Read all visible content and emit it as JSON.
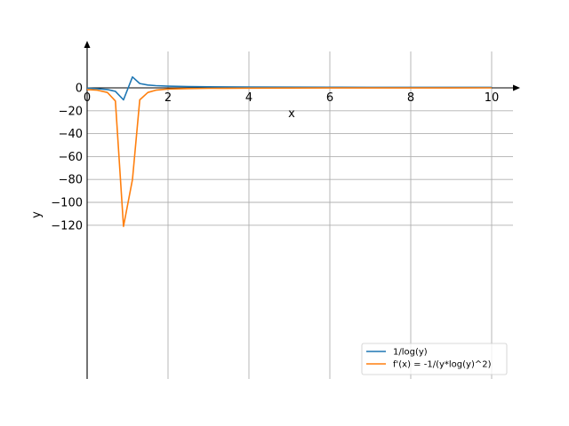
{
  "chart_data": {
    "type": "line",
    "title": "",
    "xlabel": "x",
    "ylabel": "y",
    "xlim": [
      0,
      10.5
    ],
    "ylim": [
      -128,
      18
    ],
    "grid": true,
    "legend_position": "lower-right",
    "x_ticks": [
      0,
      2,
      4,
      6,
      8,
      10
    ],
    "x_tick_labels": [
      "0",
      "2",
      "4",
      "6",
      "8",
      "10"
    ],
    "y_ticks": [
      0,
      -20,
      -40,
      -60,
      -80,
      -100,
      -120
    ],
    "y_tick_labels": [
      "0",
      "−20",
      "−40",
      "−60",
      "−80",
      "−100",
      "−120"
    ],
    "series": [
      {
        "name": "1/log(y)",
        "color": "#1f77b4",
        "x": [
          0,
          0.25,
          0.5,
          0.7,
          0.9,
          1.12,
          1.3,
          1.5,
          1.7,
          2.0,
          2.5,
          3.0,
          4.0,
          5.0,
          6.0,
          7.0,
          8.0,
          9.0,
          10.0
        ],
        "y": [
          -0.2,
          -0.8,
          -1.5,
          -3.0,
          -10.5,
          9.5,
          3.8,
          2.5,
          1.9,
          1.45,
          1.1,
          0.9,
          0.75,
          0.62,
          0.55,
          0.5,
          0.48,
          0.45,
          0.43
        ]
      },
      {
        "name": "f'(x) = -1/(y*log(y)^2)",
        "color": "#ff7f0e",
        "x": [
          0,
          0.25,
          0.5,
          0.7,
          0.9,
          1.12,
          1.3,
          1.5,
          1.7,
          2.0,
          2.5,
          3.0,
          4.0,
          5.0,
          6.0,
          7.0,
          8.0,
          9.0,
          10.0
        ],
        "y": [
          -1.5,
          -2.0,
          -4.0,
          -11.5,
          -121,
          -80,
          -10.5,
          -4.0,
          -2.0,
          -1.0,
          -0.6,
          -0.4,
          -0.2,
          -0.13,
          -0.09,
          -0.07,
          -0.05,
          -0.04,
          -0.03
        ]
      }
    ]
  }
}
